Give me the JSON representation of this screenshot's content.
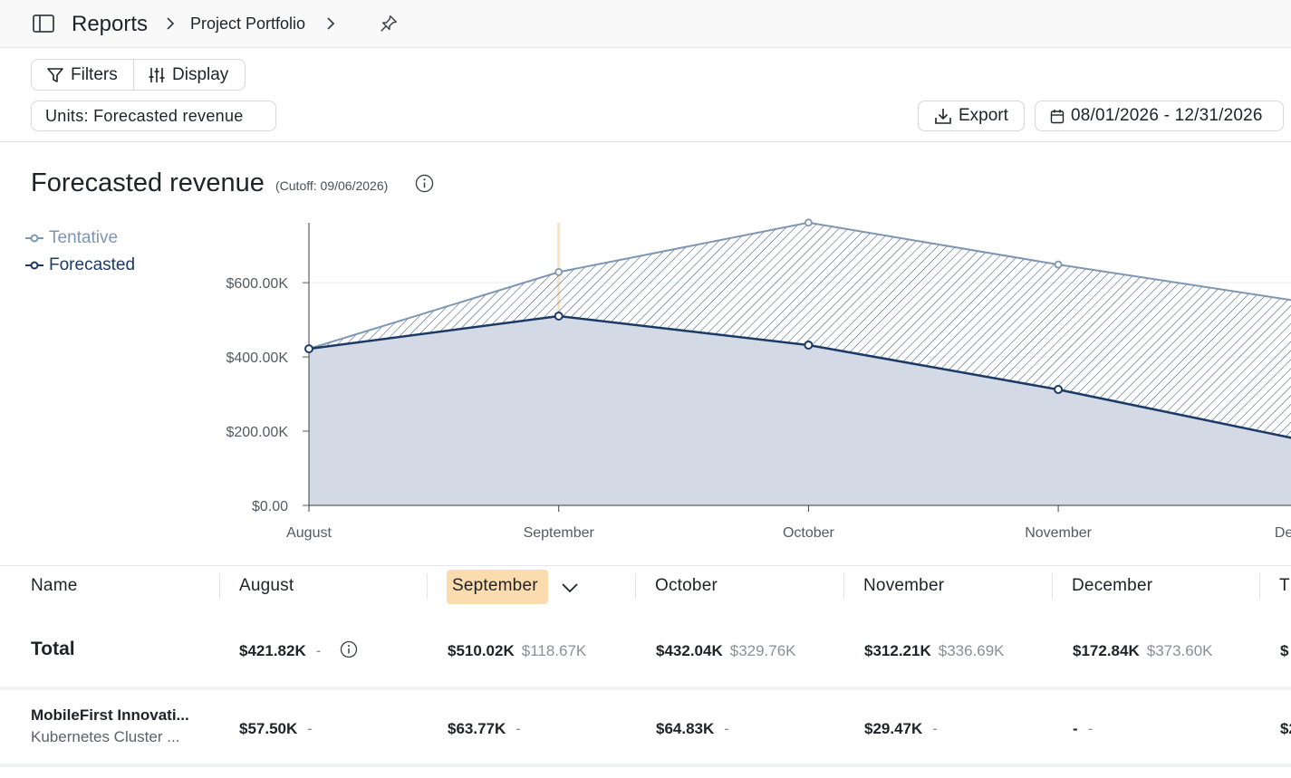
{
  "breadcrumb": {
    "root": "Reports",
    "current": "Project Portfolio"
  },
  "toolbar": {
    "filters_label": "Filters",
    "display_label": "Display",
    "units_label": "Units: Forecasted revenue",
    "export_label": "Export",
    "date_range": "08/01/2026 - 12/31/2026"
  },
  "chart_header": {
    "title": "Forecasted revenue",
    "cutoff": "(Cutoff: 09/06/2026)"
  },
  "colors": {
    "tentative": "#7d96b3",
    "forecasted": "#1b3a66",
    "area_fill": "#d3dae5",
    "highlight": "#fbdcae"
  },
  "chart_data": {
    "type": "area",
    "categories": [
      "August",
      "September",
      "October",
      "November",
      "December"
    ],
    "series": [
      {
        "name": "Tentative",
        "values": [
          421.82,
          628.69,
          761.8,
          648.9,
          546.44
        ]
      },
      {
        "name": "Forecasted",
        "values": [
          421.82,
          510.02,
          432.04,
          312.21,
          172.84
        ]
      }
    ],
    "y_ticks": [
      "$0.00",
      "$200.00K",
      "$400.00K",
      "$600.00K"
    ],
    "y_tick_values": [
      0,
      200,
      400,
      600
    ],
    "ylim": [
      0,
      800
    ],
    "highlighted_category": "September",
    "grid": true,
    "legend_position": "top-left"
  },
  "table": {
    "headers": [
      "Name",
      "August",
      "September",
      "October",
      "November",
      "December",
      "T"
    ],
    "total_row": {
      "label": "Total",
      "cells": [
        {
          "main": "$421.82K",
          "sub": "-"
        },
        {
          "main": "$510.02K",
          "sub": "$118.67K"
        },
        {
          "main": "$432.04K",
          "sub": "$329.76K"
        },
        {
          "main": "$312.21K",
          "sub": "$336.69K"
        },
        {
          "main": "$172.84K",
          "sub": "$373.60K"
        },
        {
          "main": "$",
          "sub": ""
        }
      ]
    },
    "rows": [
      {
        "name": "MobileFirst Innovati...",
        "project": "Kubernetes Cluster ...",
        "cells": [
          {
            "main": "$57.50K",
            "sub": "-"
          },
          {
            "main": "$63.77K",
            "sub": "-"
          },
          {
            "main": "$64.83K",
            "sub": "-"
          },
          {
            "main": "$29.47K",
            "sub": "-"
          },
          {
            "main": "-",
            "sub": "-"
          },
          {
            "main": "$2",
            "sub": ""
          }
        ]
      }
    ]
  }
}
